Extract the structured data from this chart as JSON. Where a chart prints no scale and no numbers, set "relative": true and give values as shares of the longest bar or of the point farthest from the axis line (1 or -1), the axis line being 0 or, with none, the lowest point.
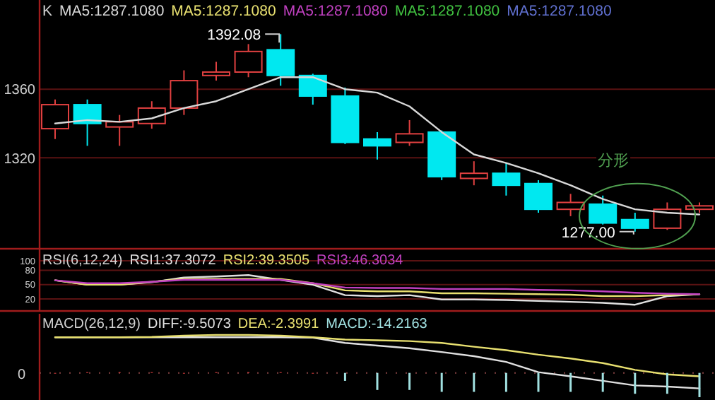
{
  "chart_data": [
    {
      "type": "candlestick",
      "title": "K",
      "tick_labels": "y",
      "grid": "y",
      "ylim": [
        1267,
        1412
      ],
      "yticks": [
        1320,
        1360
      ],
      "categories": [
        null,
        null,
        null,
        null,
        null,
        null,
        null,
        null,
        null,
        null,
        null,
        null,
        null,
        null,
        null,
        null,
        null,
        null,
        null,
        null,
        null
      ],
      "ohlc": [
        [
          1337,
          1354,
          1331,
          1351
        ],
        [
          1351,
          1354,
          1327,
          1340
        ],
        [
          1338,
          1345,
          1327,
          1341
        ],
        [
          1340,
          1353,
          1337,
          1349
        ],
        [
          1349,
          1371,
          1345,
          1365
        ],
        [
          1368,
          1376,
          1365,
          1370
        ],
        [
          1370,
          1387,
          1367,
          1382
        ],
        [
          1383,
          1392.08,
          1362,
          1368
        ],
        [
          1368,
          1369,
          1351,
          1356
        ],
        [
          1356,
          1361,
          1328,
          1329
        ],
        [
          1331,
          1335,
          1319,
          1327
        ],
        [
          1329,
          1342,
          1327,
          1334
        ],
        [
          1335,
          1336,
          1307,
          1309
        ],
        [
          1308,
          1318,
          1304,
          1311
        ],
        [
          1311,
          1317,
          1298,
          1304
        ],
        [
          1305,
          1307,
          1288,
          1290
        ],
        [
          1290,
          1299,
          1286,
          1294
        ],
        [
          1293,
          1298,
          1281,
          1282
        ],
        [
          1284,
          1288,
          1277.0,
          1279
        ],
        [
          1279,
          1294,
          1278,
          1290
        ],
        [
          1290,
          1294,
          1288,
          1292
        ]
      ],
      "series": [
        {
          "name": "MA5:1287.1080",
          "type": "line",
          "color": "#d8d8d8",
          "values": [
            1340,
            1342,
            1341,
            1343,
            1349,
            1353,
            1360,
            1367,
            1367,
            1360,
            1358,
            1350,
            1335,
            1322,
            1317,
            1311,
            1304,
            1296,
            1290,
            1288,
            1287
          ]
        }
      ],
      "annotations": [
        "MA5:1287.1080",
        "MA5:1287.1080",
        "MA5:1287.1080",
        "MA5:1287.1080",
        "1392.08",
        "1277.00",
        "分形"
      ]
    },
    {
      "type": "line",
      "title": "RSI(6,12,24)",
      "tick_labels": "y",
      "grid": "y",
      "ylim": [
        -5,
        125
      ],
      "yticks": [
        20,
        50,
        80,
        100
      ],
      "categories": [
        null,
        null,
        null,
        null,
        null,
        null,
        null,
        null,
        null,
        null,
        null,
        null,
        null,
        null,
        null,
        null,
        null,
        null,
        null,
        null,
        null
      ],
      "series": [
        {
          "name": "RSI1:37.3072",
          "color": "#e0e0e0",
          "values": [
            59,
            50,
            50,
            55,
            65,
            67,
            70,
            60,
            50,
            28,
            26,
            28,
            19,
            19,
            18,
            16,
            14,
            12,
            8,
            26,
            30
          ]
        },
        {
          "name": "RSI2:39.3505",
          "color": "#e8e070",
          "values": [
            59,
            50,
            50,
            56,
            62,
            62,
            62,
            62,
            53,
            38,
            36,
            36,
            32,
            32,
            31,
            30,
            29,
            26,
            26,
            28,
            30
          ]
        },
        {
          "name": "RSI3:46.3034",
          "color": "#c040c0",
          "values": [
            59,
            53,
            53,
            56,
            60,
            60,
            60,
            60,
            53,
            44,
            43,
            43,
            41,
            41,
            41,
            39,
            38,
            36,
            33,
            31,
            30
          ]
        }
      ]
    },
    {
      "type": "line",
      "title": "MACD(26,12,9)",
      "tick_labels": false,
      "relative": true,
      "categories": [
        null,
        null,
        null,
        null,
        null,
        null,
        null,
        null,
        null,
        null,
        null,
        null,
        null,
        null,
        null,
        null,
        null,
        null,
        null,
        null,
        null
      ],
      "series": [
        {
          "name": "DIFF:-9.5073",
          "color": "#e0e0e0",
          "values": [
            0.94,
            0.94,
            0.94,
            0.94,
            0.94,
            0.94,
            0.94,
            0.94,
            0.93,
            0.79,
            0.72,
            0.65,
            0.55,
            0.44,
            0.29,
            0.02,
            -0.09,
            -0.21,
            -0.33,
            -0.36,
            -0.41
          ]
        },
        {
          "name": "DEA:-2.3991",
          "color": "#e8e070",
          "values": [
            0.94,
            0.94,
            0.94,
            0.95,
            0.98,
            1.0,
            1.0,
            0.98,
            0.94,
            0.88,
            0.86,
            0.84,
            0.79,
            0.69,
            0.6,
            0.48,
            0.38,
            0.26,
            0.08,
            -0.04,
            -0.09
          ]
        },
        {
          "name": "MACD:-14.2163",
          "type": "bar",
          "color": "#a0e0e0",
          "colors": [
            "#e04040",
            "#e04040",
            "#e04040",
            "#e04040",
            "#e04040",
            "#e04040",
            "#e04040",
            "#e04040",
            "#e04040",
            "#a0e0e0",
            "#a0e0e0",
            "#a0e0e0",
            "#a0e0e0",
            "#a0e0e0",
            "#a0e0e0",
            "#a0e0e0",
            "#a0e0e0",
            "#a0e0e0",
            "#a0e0e0",
            "#a0e0e0",
            "#a0e0e0"
          ],
          "values": [
            0,
            0.02,
            0.02,
            0.02,
            0,
            0.02,
            0.02,
            0.02,
            0,
            -0.21,
            -0.45,
            -0.45,
            -0.5,
            -0.5,
            -0.5,
            -0.5,
            -0.5,
            -0.5,
            -0.55,
            -0.55,
            -0.64
          ]
        }
      ],
      "ref_lines": [
        {
          "axis": "y",
          "value": 0,
          "label": "0"
        }
      ]
    }
  ]
}
